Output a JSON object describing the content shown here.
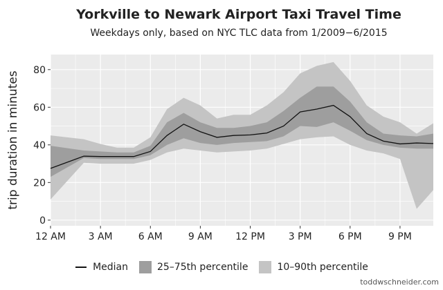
{
  "title": "Yorkville to Newark Airport Taxi Travel Time",
  "subtitle": "Weekdays only, based on NYC TLC data from 1/2009−6/2015",
  "credit": "toddwschneider.com",
  "colors": {
    "panel": "#ebebeb",
    "grid": "#ffffff",
    "band_outer": "#c4c4c4",
    "band_inner": "#9e9e9e",
    "median": "#111111",
    "text": "#222222"
  },
  "legend": {
    "median": "Median",
    "inner": "25–75th percentile",
    "outer": "10–90th percentile"
  },
  "chart_data": {
    "type": "area",
    "xlabel": "",
    "ylabel": "trip duration in minutes",
    "xlim": [
      0,
      23
    ],
    "ylim": [
      -3,
      88
    ],
    "x_ticks": [
      0,
      3,
      6,
      9,
      12,
      15,
      18,
      21
    ],
    "x_tick_labels": [
      "12 AM",
      "3 AM",
      "6 AM",
      "9 AM",
      "12 PM",
      "3 PM",
      "6 PM",
      "9 PM"
    ],
    "y_ticks": [
      0,
      20,
      40,
      60,
      80
    ],
    "y_tick_labels": [
      "0",
      "20",
      "40",
      "60",
      "80"
    ],
    "grid": true,
    "legend_position": "bottom",
    "x": [
      0,
      2,
      3,
      4,
      5,
      6,
      7,
      8,
      9,
      10,
      11,
      12,
      13,
      14,
      15,
      16,
      17,
      18,
      19,
      20,
      21,
      22,
      23
    ],
    "series": [
      {
        "name": "Median",
        "values": [
          27.5,
          34,
          33.8,
          33.8,
          33.8,
          36.5,
          45,
          51,
          47,
          44,
          45,
          45.3,
          46.3,
          50,
          57.5,
          59,
          61,
          55,
          46,
          42,
          40.5,
          41,
          40.7
        ]
      },
      {
        "name": "25–75th percentile",
        "lower": [
          23,
          33,
          32.5,
          32.5,
          32.5,
          34.5,
          40,
          43.5,
          41,
          40,
          41,
          41.5,
          42,
          44.5,
          50,
          49.5,
          52,
          47.5,
          42.5,
          40,
          38.5,
          38,
          38
        ],
        "upper": [
          39.5,
          37,
          36.5,
          36,
          36,
          39.5,
          52,
          57,
          52,
          49,
          49,
          50,
          52,
          58,
          65,
          71,
          71,
          63,
          52,
          46,
          45,
          44.5,
          46
        ]
      },
      {
        "name": "10–90th percentile",
        "lower": [
          11,
          30.5,
          30,
          30,
          30,
          32,
          36,
          38,
          37,
          36,
          36.5,
          37,
          38,
          40.5,
          43,
          44,
          44.5,
          40,
          37,
          35.5,
          32.5,
          6,
          16
        ],
        "upper": [
          45,
          43,
          40.5,
          38.5,
          38.5,
          44,
          59,
          65,
          61,
          54,
          56,
          56,
          61,
          68,
          78,
          82,
          84,
          74,
          61,
          55,
          52,
          46,
          51.5
        ]
      }
    ]
  }
}
